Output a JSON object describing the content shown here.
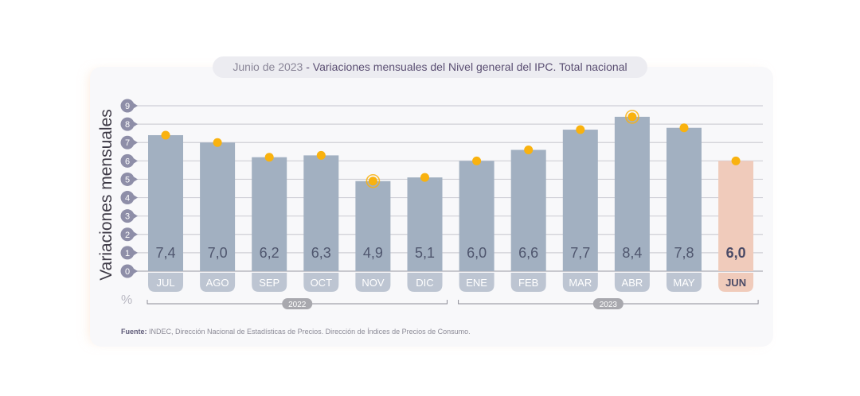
{
  "chart_data": {
    "type": "bar",
    "title_date": "Junio de 2023",
    "title_separator": " - ",
    "title": "Variaciones mensuales del Nivel general del IPC. Total nacional",
    "ylabel": "Variaciones mensuales",
    "yunit": "%",
    "ylim": [
      0,
      9
    ],
    "yticks": [
      "0",
      "1",
      "2",
      "3",
      "4",
      "5",
      "6",
      "7",
      "8",
      "9"
    ],
    "grid": true,
    "categories": [
      "JUL",
      "AGO",
      "SEP",
      "OCT",
      "NOV",
      "DIC",
      "ENE",
      "FEB",
      "MAR",
      "ABR",
      "MAY",
      "JUN"
    ],
    "values": [
      7.4,
      7.0,
      6.2,
      6.3,
      4.9,
      5.1,
      6.0,
      6.6,
      7.7,
      8.4,
      7.8,
      6.0
    ],
    "value_labels": [
      "7,4",
      "7,0",
      "6,2",
      "6,3",
      "4,9",
      "5,1",
      "6,0",
      "6,6",
      "7,7",
      "8,4",
      "7,8",
      "6,0"
    ],
    "highlight_index": 11,
    "ringed_markers": [
      4,
      9
    ],
    "year_groups": [
      {
        "label": "2022",
        "start": 0,
        "end": 5
      },
      {
        "label": "2023",
        "start": 6,
        "end": 11
      }
    ],
    "colors": {
      "bar": "#a2b0c1",
      "bar_highlight": "#f0cbbb",
      "marker": "#f9b20f",
      "tick_badge": "#8e8ea8",
      "month_label_bg": "#bdc5d2",
      "value_text": "#4f566e",
      "highlight_text": "#4a4a66"
    }
  },
  "source": {
    "label": "Fuente:",
    "text": " INDEC, Dirección Nacional de Estadísticas de Precios. Dirección de Índices de Precios de Consumo."
  }
}
